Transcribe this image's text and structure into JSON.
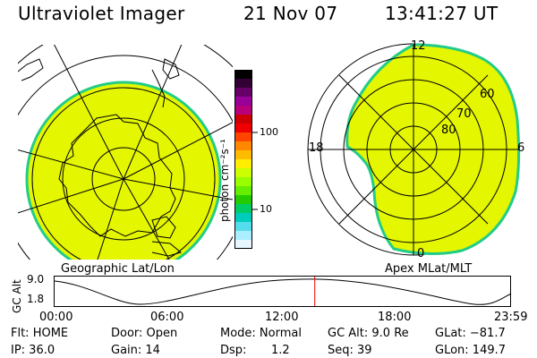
{
  "header": {
    "title": "Ultraviolet Imager",
    "date": "21 Nov 07",
    "time": "13:41:27 UT"
  },
  "left_panel": {
    "caption": "Geographic Lat/Lon"
  },
  "right_panel": {
    "caption": "Apex MLat/MLT",
    "mlt_labels": {
      "top": "12",
      "left": "18",
      "right": "6",
      "bottom": "0"
    },
    "lat_labels": [
      "80",
      "70",
      "60"
    ]
  },
  "colorbar": {
    "unit_label": "photon cm⁻²s⁻¹",
    "ticks": [
      "100",
      "10"
    ],
    "colors": [
      "#000000",
      "#330033",
      "#660066",
      "#990099",
      "#b80078",
      "#cc0000",
      "#ee0000",
      "#ff4400",
      "#ff8800",
      "#ffbb00",
      "#ffee00",
      "#ccff00",
      "#99ff00",
      "#66ee00",
      "#22cc00",
      "#00cc66",
      "#00ccbb",
      "#55ddee",
      "#aaeeff",
      "#e8f6ff"
    ]
  },
  "altitude_plot": {
    "ylabel": "GC Alt",
    "y_ticks": [
      "9.0",
      "1.8"
    ],
    "x_ticks": [
      "00:00",
      "06:00",
      "12:00",
      "18:00",
      "23:59"
    ],
    "current_time_fraction": 0.57
  },
  "status": {
    "filter": "Flt: HOME",
    "ip": "IP: 36.0",
    "door": "Door: Open",
    "gain": "Gain: 14",
    "mode": "Mode: Normal",
    "dsp_label": "Dsp:",
    "dsp_value": "1.2",
    "gc_alt": "GC Alt: 9.0 Re",
    "seq": "Seq: 39",
    "glat": "GLat: −81.7",
    "glon": "GLon: 149.7"
  },
  "colors": {
    "aurora_fill": "#e4f600",
    "aurora_edge": "#22cc88",
    "marker": "#ee0000"
  }
}
